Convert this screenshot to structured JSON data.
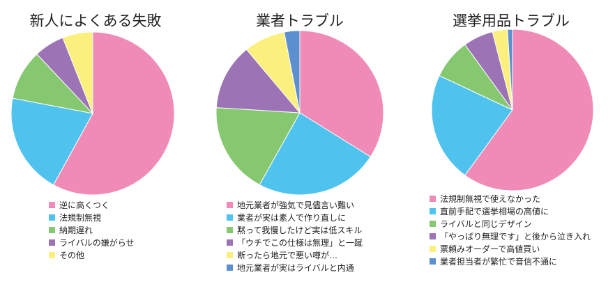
{
  "chart_data": [
    {
      "type": "pie",
      "title": "新人によくある失敗",
      "categories": [
        "逆に高くつく",
        "法規制無視",
        "納期遅れ",
        "ライバルの嫌がらせ",
        "その他"
      ],
      "values": [
        58,
        20,
        10,
        6,
        6
      ],
      "colors": [
        "#ef8bb6",
        "#4fc3ee",
        "#86c870",
        "#9c73b4",
        "#fbef7e"
      ],
      "legend_position": "bottom"
    },
    {
      "type": "pie",
      "title": "業者トラブル",
      "categories": [
        "地元業者が強気で見儘言い難い",
        "業者が実は素人で作り直しに",
        "黙って我慢したけど実は低スキル",
        "「ウチでこの仕様は無理」と一蹴",
        "断ったら地元で悪い噂が…",
        "地元業者が実はライバルと内通"
      ],
      "values": [
        34,
        24,
        18,
        13,
        8,
        3
      ],
      "colors": [
        "#ef8bb6",
        "#4fc3ee",
        "#86c870",
        "#9c73b4",
        "#fbef7e",
        "#5b8fd0"
      ],
      "legend_position": "bottom"
    },
    {
      "type": "pie",
      "title": "選挙用品トラブル",
      "categories": [
        "法規制無視で使えなかった",
        "直前手配で選挙相場の高値に",
        "ライバルと同じデザイン",
        "「やっぱり無理です」と後から泣き入れ",
        "票頼みオーダーで高値買い",
        "業者担当者が繁忙で音信不通に"
      ],
      "values": [
        60,
        22,
        8,
        6,
        3,
        1
      ],
      "colors": [
        "#ef8bb6",
        "#4fc3ee",
        "#86c870",
        "#9c73b4",
        "#fbef7e",
        "#5b8fd0"
      ],
      "legend_position": "bottom"
    }
  ]
}
